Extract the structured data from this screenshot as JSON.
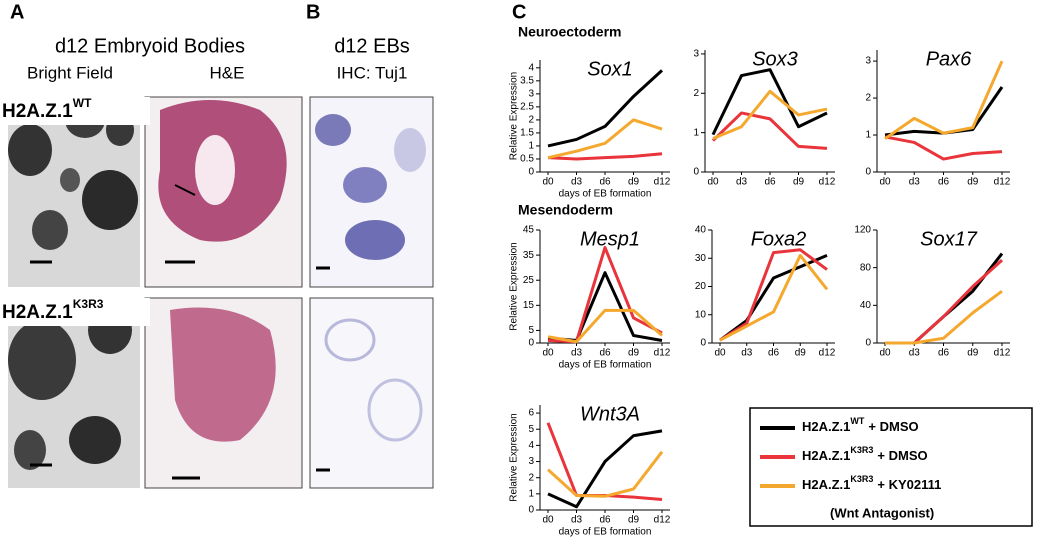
{
  "panels": {
    "A": {
      "label": "A",
      "title": "d12 Embryoid Bodies",
      "columns": [
        "Bright Field",
        "H&E"
      ],
      "rows": [
        {
          "base": "H2A.Z.1",
          "sup": "WT"
        },
        {
          "base": "H2A.Z.1",
          "sup": "K3R3"
        }
      ]
    },
    "B": {
      "label": "B",
      "title": "d12 EBs",
      "subtitle": "IHC: Tuj1"
    },
    "C": {
      "label": "C",
      "sections": [
        "Neuroectoderm",
        "Mesendoderm"
      ]
    }
  },
  "legend": {
    "items": [
      {
        "base": "H2A.Z.1",
        "sup": "WT",
        "rest": "+ DMSO"
      },
      {
        "base": "H2A.Z.1",
        "sup": "K3R3",
        "rest": "+ DMSO"
      },
      {
        "base": "H2A.Z.1",
        "sup": "K3R3",
        "rest": "+ KY02111"
      }
    ],
    "note": "(Wnt Antagonist)"
  },
  "chart_data": [
    {
      "type": "line",
      "title": "Sox1",
      "y_label": "Relative Expression",
      "x_label": "days of EB formation",
      "categories": [
        "d0",
        "d3",
        "d6",
        "d9",
        "d12"
      ],
      "ylim": [
        0,
        4.3
      ],
      "yticks": [
        0,
        0.5,
        1,
        1.5,
        2,
        2.5,
        3,
        3.5,
        4
      ],
      "series": [
        {
          "color": "#000000",
          "values": [
            1.0,
            1.25,
            1.75,
            2.9,
            3.9
          ]
        },
        {
          "color": "#e8343a",
          "values": [
            0.55,
            0.5,
            0.55,
            0.6,
            0.7
          ]
        },
        {
          "color": "#f5a82e",
          "values": [
            0.55,
            0.8,
            1.1,
            2.0,
            1.65
          ]
        }
      ]
    },
    {
      "type": "line",
      "title": "Sox3",
      "categories": [
        "d0",
        "d3",
        "d6",
        "d9",
        "d12"
      ],
      "ylim": [
        0,
        3.1
      ],
      "yticks": [
        0,
        1,
        2,
        3
      ],
      "series": [
        {
          "color": "#000000",
          "values": [
            0.95,
            2.45,
            2.6,
            1.15,
            1.5
          ]
        },
        {
          "color": "#e8343a",
          "values": [
            0.8,
            1.5,
            1.35,
            0.65,
            0.6
          ]
        },
        {
          "color": "#f5a82e",
          "values": [
            0.85,
            1.15,
            2.05,
            1.45,
            1.6
          ]
        }
      ]
    },
    {
      "type": "line",
      "title": "Pax6",
      "categories": [
        "d0",
        "d3",
        "d6",
        "d9",
        "d12"
      ],
      "ylim": [
        0,
        3.3
      ],
      "yticks": [
        0,
        1,
        2,
        3
      ],
      "series": [
        {
          "color": "#000000",
          "values": [
            1.0,
            1.1,
            1.05,
            1.15,
            2.3
          ]
        },
        {
          "color": "#e8343a",
          "values": [
            0.95,
            0.8,
            0.35,
            0.5,
            0.55
          ]
        },
        {
          "color": "#f5a82e",
          "values": [
            0.9,
            1.45,
            1.05,
            1.2,
            3.0
          ]
        }
      ]
    },
    {
      "type": "line",
      "title": "Mesp1",
      "y_label": "Relative Expression",
      "x_label": "days of EB formation",
      "categories": [
        "d0",
        "d3",
        "d6",
        "d9",
        "d12"
      ],
      "ylim": [
        0,
        45
      ],
      "yticks": [
        0,
        5,
        15,
        25,
        35,
        45
      ],
      "series": [
        {
          "color": "#000000",
          "values": [
            2,
            1,
            28,
            3,
            1
          ]
        },
        {
          "color": "#e8343a",
          "values": [
            1,
            0.5,
            38,
            10,
            4
          ]
        },
        {
          "color": "#f5a82e",
          "values": [
            2.5,
            0.5,
            13,
            13,
            3
          ]
        }
      ]
    },
    {
      "type": "line",
      "title": "Foxa2",
      "categories": [
        "d0",
        "d3",
        "d6",
        "d9",
        "d12"
      ],
      "ylim": [
        0,
        40
      ],
      "yticks": [
        0,
        10,
        20,
        30,
        40
      ],
      "series": [
        {
          "color": "#000000",
          "values": [
            1,
            8,
            23,
            27,
            31
          ]
        },
        {
          "color": "#e8343a",
          "values": [
            1,
            7,
            32,
            33,
            26
          ]
        },
        {
          "color": "#f5a82e",
          "values": [
            1,
            6,
            11,
            31,
            19
          ]
        }
      ]
    },
    {
      "type": "line",
      "title": "Sox17",
      "categories": [
        "d0",
        "d3",
        "d6",
        "d9",
        "d12"
      ],
      "ylim": [
        0,
        120
      ],
      "yticks": [
        0,
        40,
        80,
        120
      ],
      "series": [
        {
          "color": "#000000",
          "values": [
            0,
            0,
            28,
            55,
            95
          ]
        },
        {
          "color": "#e8343a",
          "values": [
            0,
            0,
            28,
            60,
            88
          ]
        },
        {
          "color": "#f5a82e",
          "values": [
            0,
            0,
            5,
            32,
            55
          ]
        }
      ]
    },
    {
      "type": "line",
      "title": "Wnt3A",
      "y_label": "Relative Expression",
      "x_label": "days of EB formation",
      "categories": [
        "d0",
        "d3",
        "d6",
        "d9",
        "d12"
      ],
      "ylim": [
        0,
        6.5
      ],
      "yticks": [
        0,
        1,
        2,
        3,
        4,
        5,
        6
      ],
      "series": [
        {
          "color": "#000000",
          "values": [
            1.0,
            0.2,
            3.0,
            4.6,
            4.9
          ]
        },
        {
          "color": "#e8343a",
          "values": [
            5.4,
            0.9,
            0.9,
            0.8,
            0.65
          ]
        },
        {
          "color": "#f5a82e",
          "values": [
            2.5,
            0.9,
            0.85,
            1.3,
            3.6
          ]
        }
      ]
    }
  ]
}
